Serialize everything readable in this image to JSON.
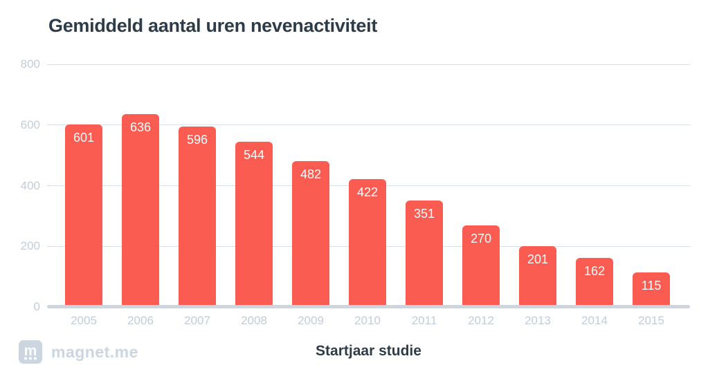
{
  "title": "Gemiddeld aantal uren nevenactiviteit",
  "footer": {
    "brand": "magnet.me",
    "logo_icon": "magnet-m-icon"
  },
  "colors": {
    "bar": "#fb5c51",
    "bar_label": "#ffffff",
    "title_text": "#2d3c48",
    "axis_label": "#c1cdda",
    "gridline": "#d8dfe6",
    "axis_line": "#cdd6de",
    "logo": "#ccd6e0",
    "background": "#ffffff"
  },
  "chart_data": {
    "type": "bar",
    "title": "Gemiddeld aantal uren nevenactiviteit",
    "categories": [
      "2005",
      "2006",
      "2007",
      "2008",
      "2009",
      "2010",
      "2011",
      "2012",
      "2013",
      "2014",
      "2015"
    ],
    "values": [
      601,
      636,
      596,
      544,
      482,
      422,
      351,
      270,
      201,
      162,
      115
    ],
    "bar_labels": [
      601,
      636,
      596,
      544,
      482,
      422,
      351,
      270,
      201,
      162,
      115
    ],
    "xlabel": "Startjaar studie",
    "ylabel": "",
    "ylim": [
      0,
      800
    ],
    "yticks": [
      0,
      200,
      400,
      600,
      800
    ],
    "grid": true,
    "legend": "none"
  }
}
